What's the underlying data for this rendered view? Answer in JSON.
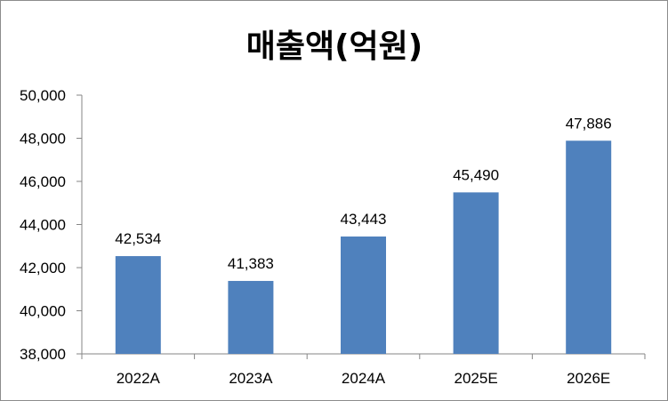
{
  "chart_data": {
    "type": "bar",
    "title": "매출액(억원)",
    "categories": [
      "2022A",
      "2023A",
      "2024A",
      "2025E",
      "2026E"
    ],
    "values": [
      42534,
      41383,
      43443,
      45490,
      47886
    ],
    "data_labels": [
      "42,534",
      "41,383",
      "43,443",
      "45,490",
      "47,886"
    ],
    "ylim": [
      38000,
      50000
    ],
    "yticks": [
      38000,
      40000,
      42000,
      44000,
      46000,
      48000,
      50000
    ],
    "ytick_labels": [
      "38,000",
      "40,000",
      "42,000",
      "44,000",
      "46,000",
      "48,000",
      "50,000"
    ],
    "xlabel": "",
    "ylabel": "",
    "grid": false,
    "legend": "none",
    "bar_color": "#4f81bd"
  }
}
